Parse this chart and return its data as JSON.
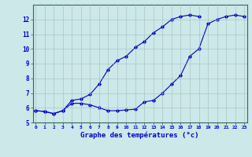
{
  "xlabel": "Graphe des températures (°c)",
  "background_color": "#cce8e8",
  "line_color": "#0000cc",
  "x_hours": [
    0,
    1,
    2,
    3,
    4,
    5,
    6,
    7,
    8,
    9,
    10,
    11,
    12,
    13,
    14,
    15,
    16,
    17,
    18,
    19,
    20,
    21,
    22,
    23
  ],
  "line1_y": [
    5.8,
    5.75,
    5.6,
    5.8,
    6.3,
    6.3,
    6.2,
    6.0,
    5.8,
    5.8,
    5.85,
    5.9,
    6.4,
    6.5,
    7.0,
    7.6,
    8.2,
    9.5,
    10.0,
    11.7,
    12.0,
    12.2,
    12.3,
    12.2
  ],
  "line2_y": [
    5.8,
    5.75,
    5.6,
    5.8,
    6.5,
    6.6,
    6.9,
    7.6,
    8.6,
    9.2,
    9.5,
    10.1,
    10.5,
    11.1,
    11.5,
    12.0,
    12.2,
    12.3,
    12.2,
    null,
    null,
    null,
    null,
    null
  ],
  "ylim": [
    5.0,
    13.0
  ],
  "yticks": [
    5,
    6,
    7,
    8,
    9,
    10,
    11,
    12
  ],
  "xlim": [
    0,
    23
  ],
  "figsize": [
    3.2,
    2.0
  ],
  "dpi": 100
}
